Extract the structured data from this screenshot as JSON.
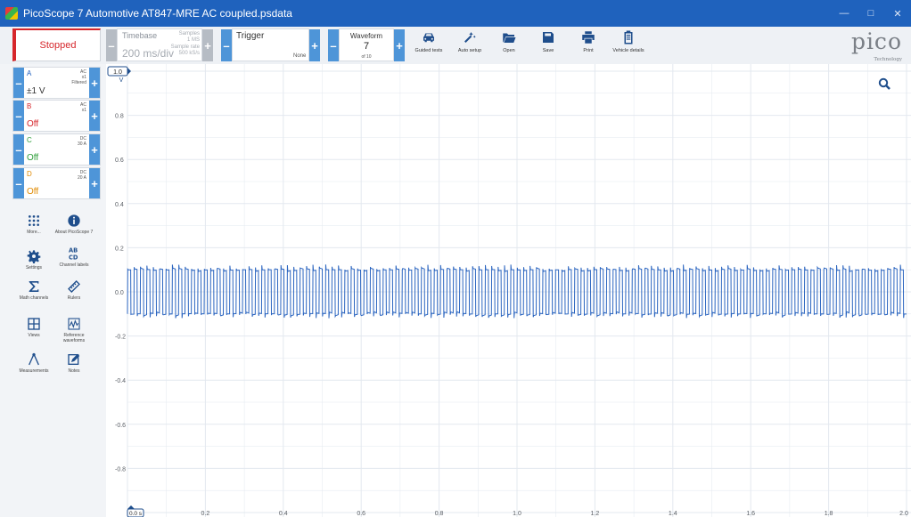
{
  "window": {
    "title": "PicoScope 7 Automotive AT847-MRE AC coupled.psdata"
  },
  "toolbar": {
    "status": "Stopped",
    "timebase_label": "Timebase",
    "timebase_value": "200 ms/div",
    "samples_label": "Samples",
    "samples_value": "1 MS",
    "sample_rate_label": "Sample rate",
    "sample_rate_value": "500 kS/s",
    "trigger_label": "Trigger",
    "trigger_mode": "None",
    "waveform_label": "Waveform",
    "waveform_index": "7",
    "waveform_total": "of 10",
    "tools": [
      {
        "label": "Guided tests",
        "icon": "car-icon"
      },
      {
        "label": "Auto setup",
        "icon": "magic-wand-icon"
      },
      {
        "label": "Open",
        "icon": "folder-icon"
      },
      {
        "label": "Save",
        "icon": "save-icon"
      },
      {
        "label": "Print",
        "icon": "printer-icon"
      },
      {
        "label": "Vehicle details",
        "icon": "clipboard-icon"
      }
    ],
    "logo_text": "pico",
    "logo_sub": "Technology"
  },
  "channels": [
    {
      "letter": "A",
      "coupling": "AC",
      "probe": "x1",
      "filter": "Filtered",
      "range": "±1 V",
      "color": "#1f5fbf",
      "range_color": "#333333"
    },
    {
      "letter": "B",
      "coupling": "AC",
      "probe": "x1",
      "filter": "",
      "range": "Off",
      "color": "#d6262b",
      "range_color": "#d6262b"
    },
    {
      "letter": "C",
      "coupling": "DC",
      "probe": "30 A",
      "filter": "",
      "range": "Off",
      "color": "#2e9e3a",
      "range_color": "#2e9e3a"
    },
    {
      "letter": "D",
      "coupling": "DC",
      "probe": "20 A",
      "filter": "",
      "range": "Off",
      "color": "#e08a00",
      "range_color": "#e08a00"
    }
  ],
  "sidebar": {
    "items": [
      {
        "label": "More...",
        "icon": "grid-dots-icon"
      },
      {
        "label": "About PicoScope 7",
        "icon": "info-icon"
      },
      {
        "label": "Settings",
        "icon": "gear-icon"
      },
      {
        "label": "Channel labels",
        "icon": "abcd-icon"
      },
      {
        "label": "Math channels",
        "icon": "sigma-icon"
      },
      {
        "label": "Rulers",
        "icon": "ruler-icon"
      },
      {
        "label": "Views",
        "icon": "views-icon"
      },
      {
        "label": "Reference waveforms",
        "icon": "reference-waveform-icon"
      },
      {
        "label": "Measurements",
        "icon": "measurements-icon"
      },
      {
        "label": "Notes",
        "icon": "notes-icon"
      }
    ]
  },
  "plot": {
    "y_axis_badge": "1.0",
    "y_unit": "V",
    "x_axis_badge": "0.0 s",
    "trace_color": "#2b65c0",
    "grid_color": "#e3e8ef",
    "zoom_icon": "zoom-icon"
  },
  "chart_data": {
    "type": "line",
    "series": [
      {
        "name": "A",
        "values": []
      }
    ],
    "ylim": [
      -1.0,
      1.0
    ],
    "xlim": [
      0.0,
      2.0
    ],
    "y_ticks": [
      "0.8",
      "0.6",
      "0.4",
      "0.2",
      "0.0",
      "-0.2",
      "-0.4",
      "-0.6",
      "-0.8"
    ],
    "x_ticks": [
      "0.2",
      "0.4",
      "0.6",
      "0.8",
      "1.0",
      "1.2",
      "1.4",
      "1.6",
      "1.8",
      "2.0"
    ],
    "signal": {
      "high": 0.1,
      "low": -0.1,
      "cycles": 122
    },
    "grid": true
  }
}
